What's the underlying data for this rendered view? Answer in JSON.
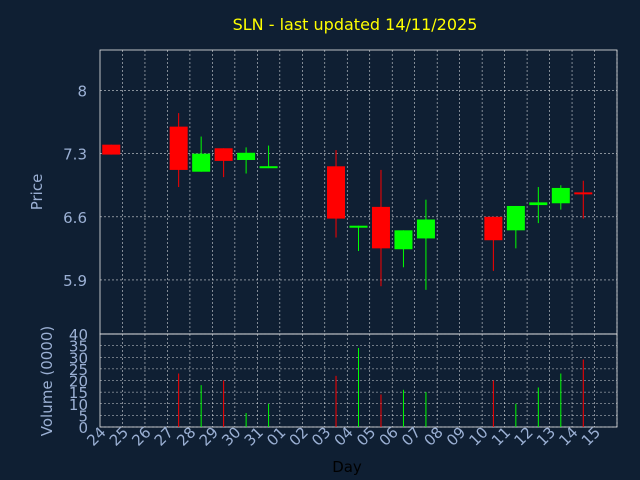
{
  "chart_data": {
    "type": "candlestick",
    "title": "SLN - last updated 14/11/2025",
    "xlabel": "Day",
    "price_panel": {
      "ylabel": "Price",
      "yticks": [
        "8",
        "7.3",
        "6.6",
        "5.9"
      ],
      "ytick_values": [
        8.0,
        7.3,
        6.6,
        5.9
      ],
      "ylim": [
        5.3,
        8.45
      ]
    },
    "volume_panel": {
      "ylabel": "Volume (0000)",
      "yticks": [
        "40",
        "35",
        "30",
        "25",
        "20",
        "15",
        "10",
        "5",
        "0"
      ],
      "ytick_values": [
        40,
        35,
        30,
        25,
        20,
        15,
        10,
        5,
        0
      ],
      "ylim": [
        0,
        40
      ]
    },
    "categories": [
      "24",
      "25",
      "26",
      "27",
      "28",
      "29",
      "30",
      "31",
      "01",
      "02",
      "03",
      "04",
      "05",
      "06",
      "07",
      "08",
      "09",
      "10",
      "11",
      "12",
      "13",
      "14",
      "15"
    ],
    "candles": [
      {
        "day": "24",
        "open": 7.4,
        "close": 7.29,
        "high": 7.4,
        "low": 7.29,
        "volume": 0
      },
      {
        "day": "27",
        "open": 7.6,
        "close": 7.12,
        "high": 7.75,
        "low": 6.93,
        "volume": 23
      },
      {
        "day": "28",
        "open": 7.1,
        "close": 7.3,
        "high": 7.49,
        "low": 7.1,
        "volume": 18
      },
      {
        "day": "29",
        "open": 7.36,
        "close": 7.22,
        "high": 7.36,
        "low": 7.04,
        "volume": 20
      },
      {
        "day": "30",
        "open": 7.23,
        "close": 7.31,
        "high": 7.37,
        "low": 7.08,
        "volume": 6
      },
      {
        "day": "31",
        "open": 7.14,
        "close": 7.15,
        "high": 7.39,
        "low": 7.14,
        "volume": 10
      },
      {
        "day": "03",
        "open": 7.16,
        "close": 6.58,
        "high": 7.34,
        "low": 6.37,
        "volume": 22
      },
      {
        "day": "04",
        "open": 6.48,
        "close": 6.49,
        "high": 6.5,
        "low": 6.22,
        "volume": 34
      },
      {
        "day": "05",
        "open": 6.71,
        "close": 6.25,
        "high": 7.12,
        "low": 5.83,
        "volume": 14
      },
      {
        "day": "06",
        "open": 6.24,
        "close": 6.45,
        "high": 6.45,
        "low": 6.04,
        "volume": 16
      },
      {
        "day": "07",
        "open": 6.36,
        "close": 6.57,
        "high": 6.79,
        "low": 5.79,
        "volume": 15
      },
      {
        "day": "10",
        "open": 6.6,
        "close": 6.34,
        "high": 6.6,
        "low": 6.0,
        "volume": 20
      },
      {
        "day": "11",
        "open": 6.45,
        "close": 6.72,
        "high": 6.72,
        "low": 6.25,
        "volume": 10
      },
      {
        "day": "12",
        "open": 6.73,
        "close": 6.76,
        "high": 6.93,
        "low": 6.53,
        "volume": 17
      },
      {
        "day": "13",
        "open": 6.75,
        "close": 6.92,
        "high": 6.95,
        "low": 6.68,
        "volume": 23
      },
      {
        "day": "14",
        "open": 6.86,
        "close": 6.84,
        "high": 7.0,
        "low": 6.58,
        "volume": 29
      }
    ],
    "colors": {
      "up": "#00ff00",
      "down": "#ff0000",
      "background": "#0f1f33",
      "title": "#ffff00",
      "axis_text": "#9bb0d4",
      "grid": "#ffffff"
    },
    "grid": true
  }
}
